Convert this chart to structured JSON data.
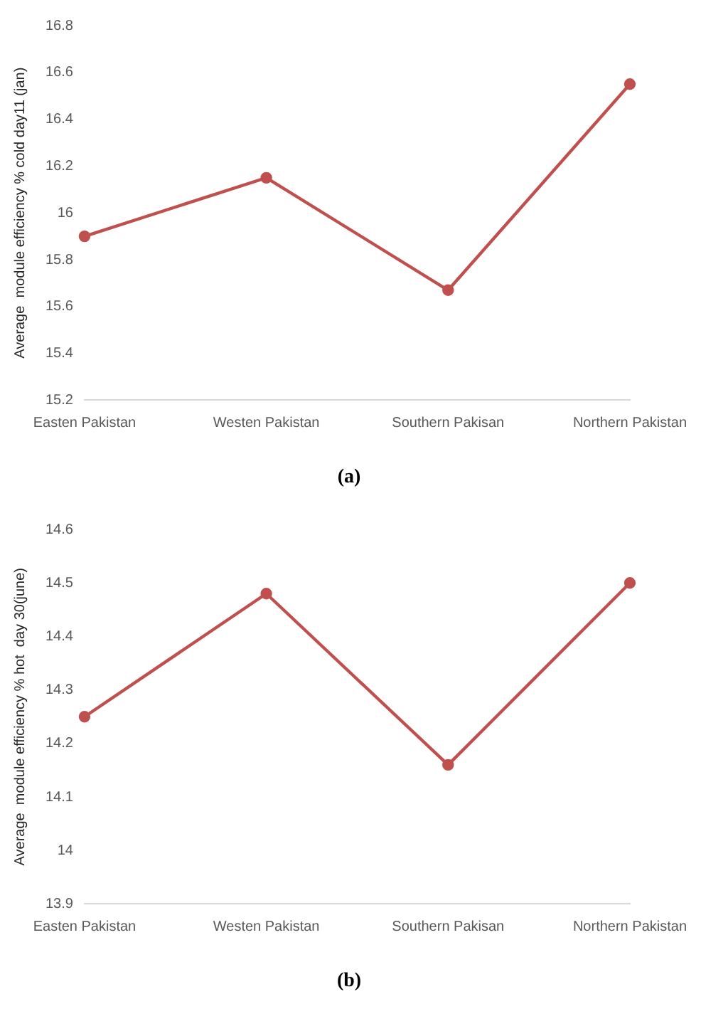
{
  "chart_data": [
    {
      "type": "line",
      "title": "(a)",
      "ylabel": "Average  module efficiency % cold day11 (jan)",
      "categories": [
        "Easten Pakistan",
        "Westen Pakistan",
        "Southern Pakisan",
        "Northern Pakistan"
      ],
      "series": [
        {
          "color": "#c0504d",
          "values": [
            15.9,
            16.15,
            15.67,
            16.55
          ]
        }
      ],
      "ylim": [
        15.2,
        16.8
      ],
      "yticks": [
        15.2,
        15.4,
        15.6,
        15.8,
        16,
        16.2,
        16.4,
        16.6,
        16.8
      ],
      "grid": false,
      "legend": false,
      "marker": "circle",
      "line_style": "solid"
    },
    {
      "type": "line",
      "title": "(b)",
      "ylabel": "Average  module efficiency % hot  day 30(june)",
      "categories": [
        "Easten Pakistan",
        "Westen Pakistan",
        "Southern Pakisan",
        "Northern Pakistan"
      ],
      "series": [
        {
          "color": "#c0504d",
          "values": [
            14.25,
            14.48,
            14.16,
            14.5
          ]
        }
      ],
      "ylim": [
        13.9,
        14.6
      ],
      "yticks": [
        13.9,
        14,
        14.1,
        14.2,
        14.3,
        14.4,
        14.5,
        14.6
      ],
      "grid": false,
      "legend": false,
      "marker": "circle",
      "line_style": "solid"
    }
  ]
}
